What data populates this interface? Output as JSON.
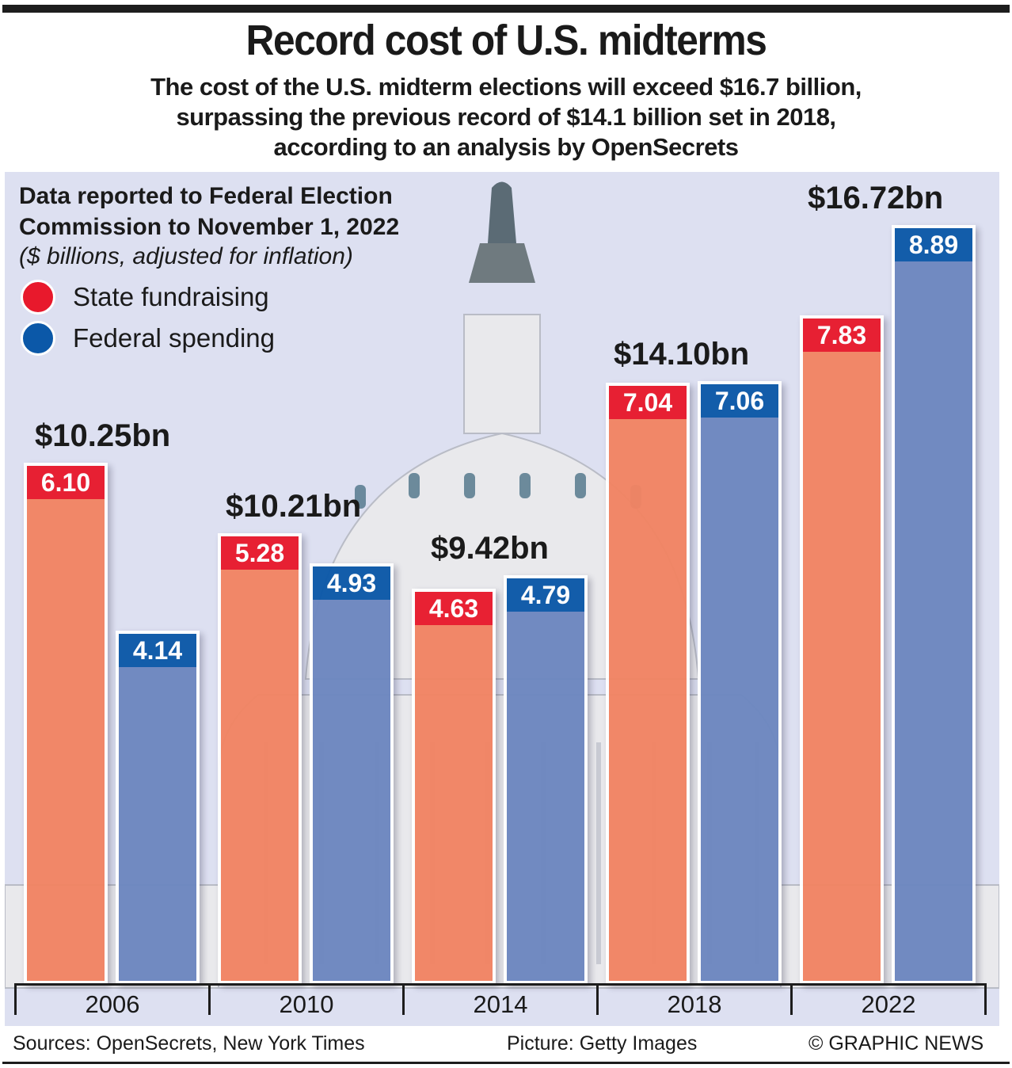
{
  "header": {
    "title": "Record cost of U.S. midterms",
    "subtitle_lines": [
      "The cost of the U.S. midterm elections will exceed $16.7 billion,",
      "surpassing the previous record of $14.1 billion set in 2018,",
      "according to an analysis by OpenSecrets"
    ]
  },
  "note": {
    "line1": "Data reported to Federal Election",
    "line2": "Commission to November 1, 2022",
    "units": "($ billions, adjusted for inflation)"
  },
  "colors": {
    "state_cap": "#e8192c",
    "state_bar": "#f28463",
    "federal_cap": "#0b58a8",
    "federal_bar": "#6d87c0",
    "panel": "#dde0f1"
  },
  "footer": {
    "sources": "Sources: OpenSecrets, New York Times",
    "picture": "Picture: Getty Images",
    "copyright": "© GRAPHIC NEWS"
  },
  "chart_data": {
    "type": "bar",
    "title": "Record cost of U.S. midterms",
    "subtitle": "The cost of the U.S. midterm elections will exceed $16.7 billion, surpassing the previous record of $14.1 billion set in 2018, according to an analysis by OpenSecrets",
    "xlabel": "",
    "ylabel": "$ billions, adjusted for inflation",
    "ylim": [
      0,
      9.2
    ],
    "grid": false,
    "legend_position": "top-left",
    "categories": [
      "2006",
      "2010",
      "2014",
      "2018",
      "2022"
    ],
    "series": [
      {
        "name": "State fundraising",
        "values": [
          6.1,
          5.28,
          4.63,
          7.04,
          7.83
        ],
        "labels": [
          "6.10",
          "5.28",
          "4.63",
          "7.04",
          "7.83"
        ]
      },
      {
        "name": "Federal spending",
        "values": [
          4.14,
          4.93,
          4.79,
          7.06,
          8.89
        ],
        "labels": [
          "4.14",
          "4.93",
          "4.79",
          "7.06",
          "8.89"
        ]
      }
    ],
    "totals": [
      "$10.25bn",
      "$10.21bn",
      "$9.42bn",
      "$14.10bn",
      "$16.72bn"
    ],
    "annotations": [
      "Data reported to Federal Election Commission to November 1, 2022",
      "($ billions, adjusted for inflation)"
    ]
  }
}
